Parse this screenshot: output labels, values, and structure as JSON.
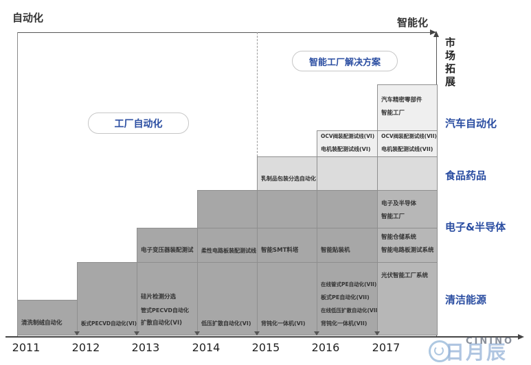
{
  "title_labels": {
    "left": "自动化",
    "right": "智能化",
    "market_axis": "市场拓展"
  },
  "stage_labels": {
    "factory_automation": "工厂自动化",
    "smart_solution": "智能工厂解决方案"
  },
  "right_categories": [
    "汽车自动化",
    "食品药品",
    "电子&半导体",
    "清洁能源"
  ],
  "colors": {
    "accent_blue": "#2a4da1",
    "dark_block": "#a7a7a7",
    "mid_block": "#b7b7b7",
    "soft_block": "#dcdcdc",
    "light_block": "#efefef",
    "axis_line": "#444444",
    "block_border": "#8e8e8e",
    "block_text": "#333333",
    "watermark_blue": "#a0bedc"
  },
  "columns": [
    {
      "year": "2011",
      "blocks": [
        {
          "band": "b6s",
          "shade": "dark",
          "align": "bottom",
          "lines": [
            "清洗制绒自动化"
          ]
        }
      ]
    },
    {
      "year": "2012",
      "blocks": [
        {
          "band": "b6",
          "shade": "dark",
          "align": "bottom",
          "lines": [
            "板式PECVD自动化(VI)"
          ]
        }
      ]
    },
    {
      "year": "2013",
      "blocks": [
        {
          "band": "b5",
          "shade": "dark",
          "align": "bottom",
          "lines": [
            "电子变压器装配测试"
          ]
        },
        {
          "band": "b6",
          "shade": "dark",
          "align": "bottom",
          "lines": [
            "硅片检测分选",
            "管式PECVD自动化",
            "扩散自动化(VI)"
          ]
        }
      ]
    },
    {
      "year": "2014",
      "blocks": [
        {
          "band": "b4",
          "shade": "dark",
          "align": "bottom",
          "lines": []
        },
        {
          "band": "b5",
          "shade": "dark",
          "align": "bottom",
          "lines": [
            "柔性电路板装配测试线"
          ]
        },
        {
          "band": "b6",
          "shade": "dark",
          "align": "bottom",
          "lines": [
            "低压扩散自动化(VI)"
          ]
        }
      ]
    },
    {
      "year": "2015",
      "blocks": [
        {
          "band": "b3",
          "shade": "soft",
          "align": "bottom",
          "lines": [
            "乳制品包装分选自动化"
          ]
        },
        {
          "band": "b4",
          "shade": "dark",
          "align": "bottom",
          "lines": []
        },
        {
          "band": "b5",
          "shade": "dark",
          "align": "bottom",
          "lines": [
            "智能SMT料塔"
          ]
        },
        {
          "band": "b6",
          "shade": "dark",
          "align": "bottom",
          "lines": [
            "背钝化一体机(VI)"
          ]
        }
      ]
    },
    {
      "year": "2016",
      "blocks": [
        {
          "band": "b2",
          "shade": "light",
          "align": "center",
          "lines": [
            "OCV阀装配测试线(VI)",
            "电机装配测试线(VI)"
          ]
        },
        {
          "band": "b3",
          "shade": "soft",
          "align": "bottom",
          "lines": []
        },
        {
          "band": "b4",
          "shade": "dark",
          "align": "bottom",
          "lines": []
        },
        {
          "band": "b5",
          "shade": "dark",
          "align": "bottom",
          "lines": [
            "智能贴装机"
          ]
        },
        {
          "band": "b6",
          "shade": "dark",
          "align": "bottom",
          "lines": [
            "在线管式PE自动化(VII)",
            "板式PE自动化(VII)",
            "在线低压扩散自动化(VII)",
            "背钝化一体机(VII)"
          ]
        }
      ]
    },
    {
      "year": "2017",
      "blocks": [
        {
          "band": "b1",
          "shade": "light",
          "align": "center",
          "lines": [
            "汽车精密零部件",
            "智能工厂"
          ]
        },
        {
          "band": "b2",
          "shade": "light",
          "align": "center",
          "lines": [
            "OCV阀装配测试线(VII)",
            "电机装配测试线(VII)"
          ]
        },
        {
          "band": "b3",
          "shade": "soft",
          "align": "bottom",
          "lines": []
        },
        {
          "band": "b4",
          "shade": "mid",
          "align": "top",
          "lines": [
            "电子及半导体",
            "智能工厂"
          ]
        },
        {
          "band": "b5",
          "shade": "mid",
          "align": "center",
          "lines": [
            "智能仓储系统",
            "智能电路板测试系统"
          ]
        },
        {
          "band": "b6",
          "shade": "mid",
          "align": "top",
          "lines": [
            "光伏智能工厂系统"
          ]
        }
      ]
    }
  ],
  "watermark": {
    "logo_text": "日月辰",
    "overlay_text": "CININO"
  }
}
